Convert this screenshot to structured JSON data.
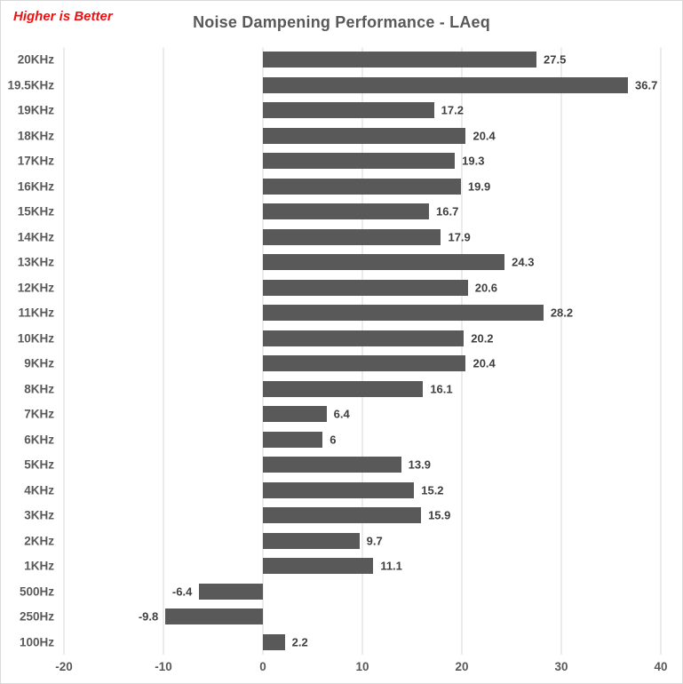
{
  "annotation": {
    "text": "Higher is Better",
    "color": "#ee1111"
  },
  "chart_data": {
    "type": "bar",
    "orientation": "horizontal",
    "title": "Noise Dampening Performance - LAeq",
    "categories": [
      "20KHz",
      "19.5KHz",
      "19KHz",
      "18KHz",
      "17KHz",
      "16KHz",
      "15KHz",
      "14KHz",
      "13KHz",
      "12KHz",
      "11KHz",
      "10KHz",
      "9KHz",
      "8KHz",
      "7KHz",
      "6KHz",
      "5KHz",
      "4KHz",
      "3KHz",
      "2KHz",
      "1KHz",
      "500Hz",
      "250Hz",
      "100Hz"
    ],
    "values": [
      27.5,
      36.7,
      17.2,
      20.4,
      19.3,
      19.9,
      16.7,
      17.9,
      24.3,
      20.6,
      28.2,
      20.2,
      20.4,
      16.1,
      6.4,
      6,
      13.9,
      15.2,
      15.9,
      9.7,
      11.1,
      -6.4,
      -9.8,
      2.2
    ],
    "value_labels": [
      "27.5",
      "36.7",
      "17.2",
      "20.4",
      "19.3",
      "19.9",
      "16.7",
      "17.9",
      "24.3",
      "20.6",
      "28.2",
      "20.2",
      "20.4",
      "16.1",
      "6.4",
      "6",
      "13.9",
      "15.2",
      "15.9",
      "9.7",
      "11.1",
      "-6.4",
      "-9.8",
      "2.2"
    ],
    "xlim": [
      -20,
      40
    ],
    "x_ticks": [
      -20,
      -10,
      0,
      10,
      20,
      30,
      40
    ],
    "x_tick_labels": [
      "-20",
      "-10",
      "0",
      "10",
      "20",
      "30",
      "40"
    ],
    "grid": true,
    "legend": "none",
    "data_labels": "outside-end"
  },
  "colors": {
    "bar": "#595959",
    "gridline": "#d9d9d9",
    "title_text": "#595959",
    "axis_text": "#595959",
    "value_text": "#3f3f3f",
    "border": "#d9d9d9",
    "background": "#ffffff"
  }
}
